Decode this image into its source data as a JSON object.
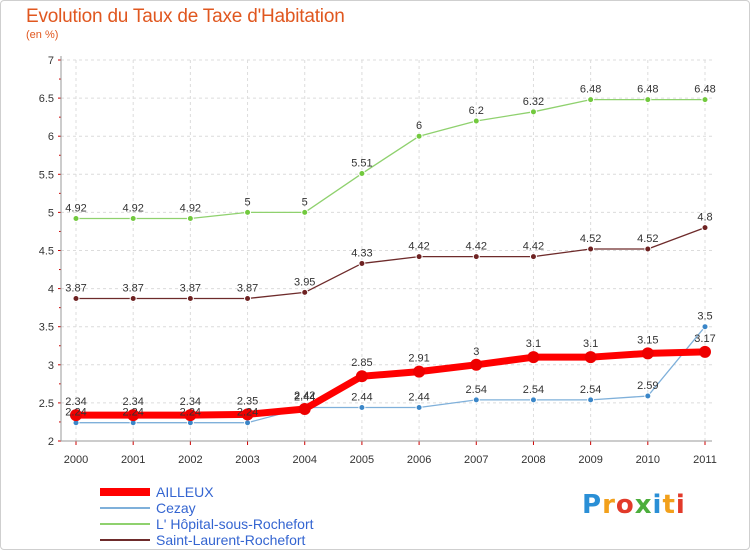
{
  "title": "Evolution du Taux de Taxe d'Habitation",
  "subtitle": "(en %)",
  "logo": {
    "text": "Proxiti",
    "colors": [
      "#2a8fd6",
      "#f2a01b",
      "#e23a2a",
      "#4cae3c",
      "#2a8fd6",
      "#f2a01b",
      "#e23a2a"
    ]
  },
  "chart_data": {
    "type": "line",
    "x": [
      "2000",
      "2001",
      "2002",
      "2003",
      "2004",
      "2005",
      "2006",
      "2007",
      "2008",
      "2009",
      "2010",
      "2011"
    ],
    "ylim": [
      2,
      7
    ],
    "yticks": [
      "2",
      "2.5",
      "3",
      "3.5",
      "4",
      "4.5",
      "5",
      "5.5",
      "6",
      "6.5",
      "7"
    ],
    "grid": true,
    "legend_position": "bottom-left",
    "series": [
      {
        "name": "L' Hôpital-sous-Rochefort",
        "color": "#8fd16e",
        "point_color": "#72c93e",
        "width": 1.3,
        "r": 3,
        "values": [
          4.92,
          4.92,
          4.92,
          5,
          5,
          5.51,
          6,
          6.2,
          6.32,
          6.48,
          6.48,
          6.48
        ],
        "labels": [
          "4.92",
          "4.92",
          "4.92",
          "5",
          "5",
          "5.51",
          "6",
          "6.2",
          "6.32",
          "6.48",
          "6.48",
          "6.48"
        ]
      },
      {
        "name": "Saint-Laurent-Rochefort",
        "color": "#6e2b2b",
        "point_color": "#6e2222",
        "width": 1.3,
        "r": 3,
        "values": [
          3.87,
          3.87,
          3.87,
          3.87,
          3.95,
          4.33,
          4.42,
          4.42,
          4.42,
          4.52,
          4.52,
          4.8
        ],
        "labels": [
          "3.87",
          "3.87",
          "3.87",
          "3.87",
          "3.95",
          "4.33",
          "4.42",
          "4.42",
          "4.42",
          "4.52",
          "4.52",
          "4.8"
        ]
      },
      {
        "name": "Cezay",
        "color": "#7fb0da",
        "point_color": "#3a86c8",
        "width": 1.3,
        "r": 3,
        "values": [
          2.24,
          2.24,
          2.24,
          2.24,
          2.44,
          2.44,
          2.44,
          2.54,
          2.54,
          2.54,
          2.59,
          3.5
        ],
        "labels": [
          "2.24",
          "2.24",
          "2.24",
          "2.24",
          "2.44",
          "2.44",
          "2.44",
          "2.54",
          "2.54",
          "2.54",
          "2.59",
          "3.5"
        ]
      },
      {
        "name": "AILLEUX",
        "color": "#ff0000",
        "point_color": "#ee0000",
        "width": 7,
        "r": 6,
        "values": [
          2.34,
          2.34,
          2.34,
          2.35,
          2.42,
          2.85,
          2.91,
          3,
          3.1,
          3.1,
          3.15,
          3.17
        ],
        "labels": [
          "2.34",
          "2.34",
          "2.34",
          "2.35",
          "2.42",
          "2.85",
          "2.91",
          "3",
          "3.1",
          "3.1",
          "3.15",
          "3.17"
        ]
      }
    ],
    "legend": [
      "AILLEUX",
      "Cezay",
      "L' Hôpital-sous-Rochefort",
      "Saint-Laurent-Rochefort"
    ]
  }
}
